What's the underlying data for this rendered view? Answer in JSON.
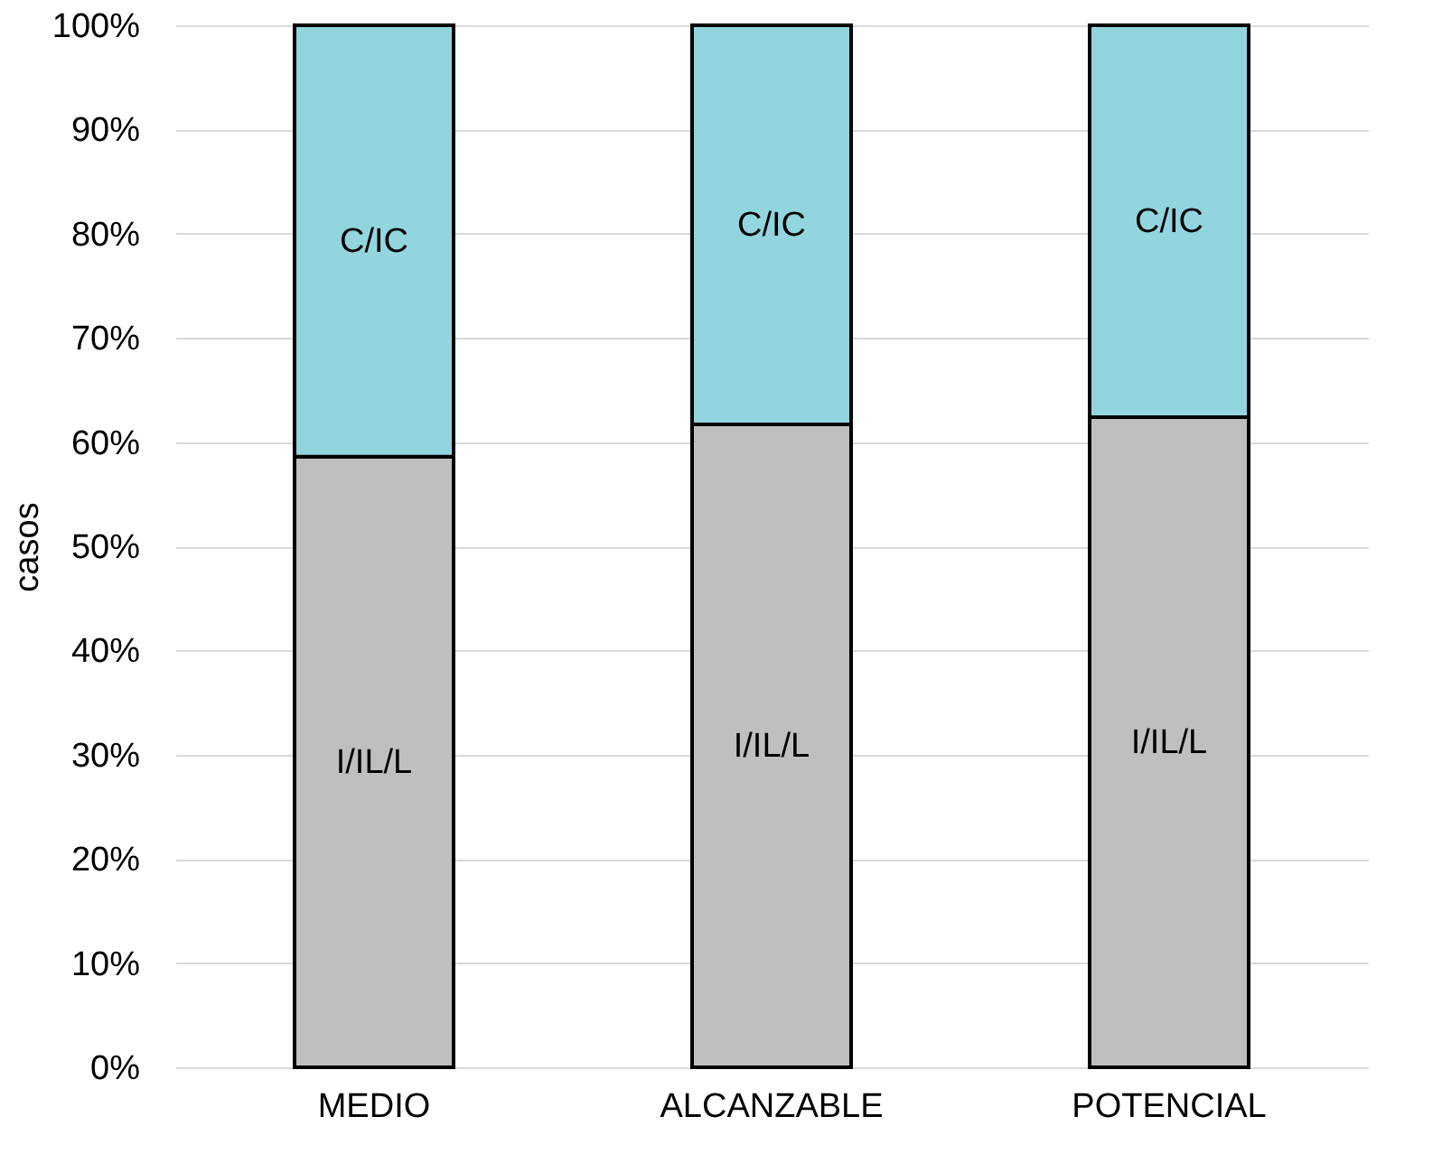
{
  "chart_data": {
    "type": "bar",
    "stacked": true,
    "ylabel": "casos",
    "categories": [
      "MEDIO",
      "ALCANZABLE",
      "POTENCIAL"
    ],
    "series": [
      {
        "name": "I/IL/L",
        "color": "#bfbfbf",
        "values": [
          58.6,
          61.7,
          62.4
        ]
      },
      {
        "name": "C/IC",
        "color": "#92d5de",
        "values": [
          41.4,
          38.3,
          37.6
        ]
      }
    ],
    "ylim": [
      0,
      100
    ],
    "yticks": [
      {
        "value": 0,
        "label": "0%"
      },
      {
        "value": 10,
        "label": "10%"
      },
      {
        "value": 20,
        "label": "20%"
      },
      {
        "value": 30,
        "label": "30%"
      },
      {
        "value": 40,
        "label": "40%"
      },
      {
        "value": 50,
        "label": "50%"
      },
      {
        "value": 60,
        "label": "60%"
      },
      {
        "value": 70,
        "label": "70%"
      },
      {
        "value": 80,
        "label": "80%"
      },
      {
        "value": 90,
        "label": "90%"
      },
      {
        "value": 100,
        "label": "100%"
      }
    ],
    "grid": "y",
    "legend": false
  }
}
